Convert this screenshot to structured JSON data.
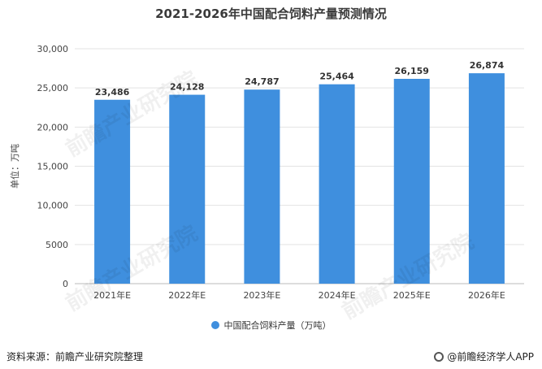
{
  "chart_data": {
    "type": "bar",
    "title": "2021-2026年中国配合饲料产量预测情况",
    "ylabel": "单位：万吨",
    "categories": [
      "2021年E",
      "2022年E",
      "2023年E",
      "2024年E",
      "2025年E",
      "2026年E"
    ],
    "series": [
      {
        "name": "中国配合饲料产量（万吨）",
        "values": [
          23486,
          24128,
          24787,
          25464,
          26159,
          26874
        ]
      }
    ],
    "data_labels": [
      "23,486",
      "24,128",
      "24,787",
      "25,464",
      "26,159",
      "26,874"
    ],
    "ylim": [
      0,
      30000
    ],
    "yticks": [
      0,
      5000,
      10000,
      15000,
      20000,
      25000,
      30000
    ],
    "ytick_labels": [
      "0",
      "5000",
      "10,000",
      "15,000",
      "20,000",
      "25,000",
      "30,000"
    ],
    "grid": true,
    "legend_position": "bottom",
    "bar_color": "#3f8fde"
  },
  "footer": {
    "source": "资料来源：前瞻产业研究院整理",
    "brand": "@前瞻经济学人APP"
  },
  "watermark": "前瞻产业研究院"
}
